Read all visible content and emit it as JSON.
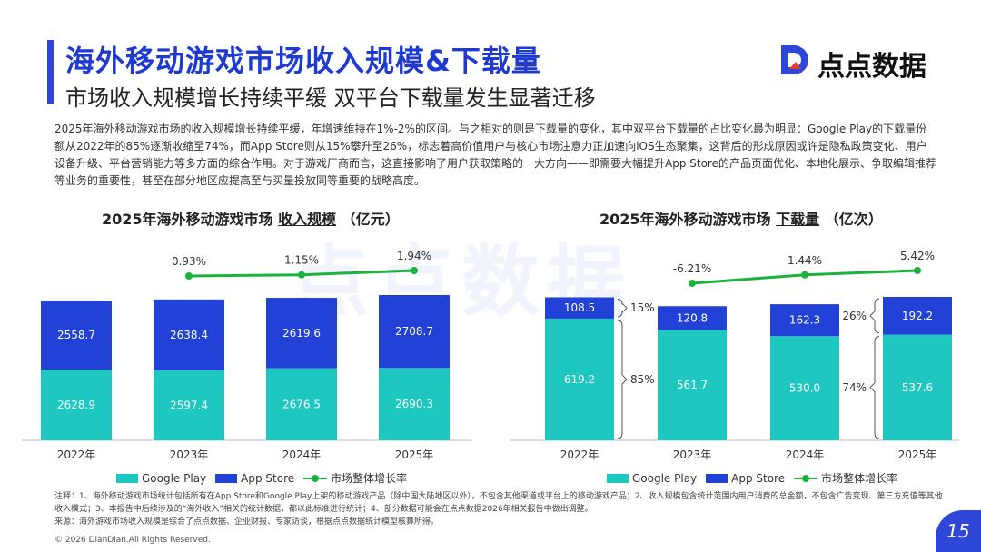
{
  "header": {
    "title": "海外移动游戏市场收入规模&下载量",
    "subtitle": "市场收入规模增长持续平缓 双平台下载量发生显著迁移"
  },
  "brand": {
    "logo_text": "点点数据",
    "watermark": "点点数据",
    "accent": "#2f47d8"
  },
  "intro": "2025年海外移动游戏市场的收入规模增长持续平缓，年增速维持在1%-2%的区间。与之相对的则是下载量的变化，其中双平台下载量的占比变化最为明显：Google Play的下载量份额从2022年的85%逐渐收缩至74%，而App Store则从15%攀升至26%，标志着高价值用户与核心市场注意力正加速向iOS生态聚集，这背后的形成原因或许是隐私政策变化、用户设备升级、平台营销能力等多方面的综合作用。对于游戏厂商而言，这直接影响了用户获取策略的一大方向——即需要大幅提升App Store的产品页面优化、本地化展示、争取编辑推荐等业务的重要性，甚至在部分地区应提高至与买量投放同等重要的战略高度。",
  "chart_data": [
    {
      "type": "bar",
      "stacked": true,
      "title_prefix": "2025年海外移动游戏市场 ",
      "title_emph": "收入规模",
      "title_suffix": " （亿元）",
      "categories": [
        "2022年",
        "2023年",
        "2024年",
        "2025年"
      ],
      "series": [
        {
          "name": "Google Play",
          "color": "#1fc7c1",
          "values": [
            2628.9,
            2597.4,
            2676.5,
            2690.3
          ],
          "labels": [
            "2628.9",
            "2597.4",
            "2676.5",
            "2690.3"
          ]
        },
        {
          "name": "App Store",
          "color": "#2241d6",
          "values": [
            2558.7,
            2638.4,
            2619.6,
            2708.7
          ],
          "labels": [
            "2558.7",
            "2638.4",
            "2619.6",
            "2708.7"
          ]
        }
      ],
      "growth": {
        "name": "市场整体增长率",
        "color": "#1ab43c",
        "x_start": 1,
        "values": [
          0.93,
          1.15,
          1.94
        ],
        "labels": [
          "0.93%",
          "1.15%",
          "1.94%"
        ]
      }
    },
    {
      "type": "bar",
      "stacked": true,
      "title_prefix": "2025年海外移动游戏市场 ",
      "title_emph": "下载量",
      "title_suffix": " （亿次）",
      "categories": [
        "2022年",
        "2023年",
        "2024年",
        "2025年"
      ],
      "series": [
        {
          "name": "Google Play",
          "color": "#1fc7c1",
          "values": [
            619.2,
            561.7,
            530.0,
            537.6
          ],
          "labels": [
            "619.2",
            "561.7",
            "530.0",
            "537.6"
          ]
        },
        {
          "name": "App Store",
          "color": "#2241d6",
          "values": [
            108.5,
            120.8,
            162.3,
            192.2
          ],
          "labels": [
            "108.5",
            "120.8",
            "162.3",
            "192.2"
          ]
        }
      ],
      "growth": {
        "name": "市场整体增长率",
        "color": "#1ab43c",
        "x_start": 1,
        "values": [
          -6.21,
          1.44,
          5.42
        ],
        "labels": [
          "-6.21%",
          "1.44%",
          "5.42%"
        ]
      },
      "share_annotations": {
        "left": {
          "top": "15%",
          "bottom": "85%"
        },
        "right": {
          "top": "26%",
          "bottom": "74%"
        }
      }
    }
  ],
  "notes": {
    "line1": "注释：1、海外移动游戏市场统计包括所有在App Store和Google Play上架的移动游戏产品（除中国大陆地区以外），不包含其他渠道或平台上的移动游戏产品；2、收入规模包含统计范围内用户消费的总金额，不包含广告变现、第三方充值等其他收入模式；3、本报告中后续涉及的“海外收入”相关的统计数据，都以此标准进行统计；4、部分数据可能会在点点数据2026年相关报告中做出调整。",
    "line2": "来源：海外游戏市场收入规模是综合了点点数据、企业财报、专家访谈，根据点点数据统计模型核算所得。"
  },
  "footer": {
    "copyright": "© 2026 DianDian.All Rights Reserved.",
    "page": "15"
  }
}
